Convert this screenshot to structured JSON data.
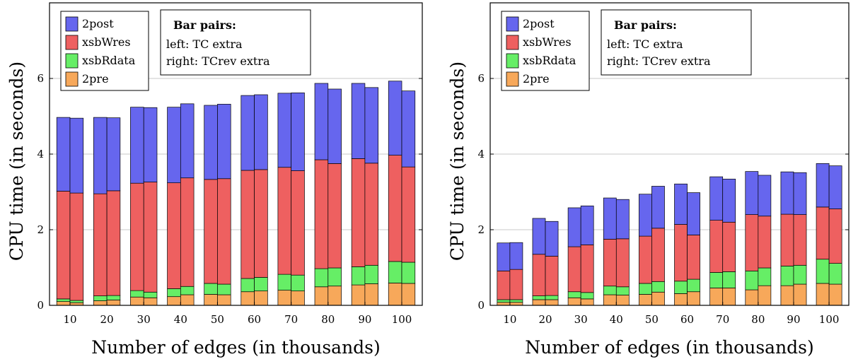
{
  "chart_data": [
    {
      "type": "bar",
      "stacked": true,
      "grouped": "pairs",
      "categories": [
        "10",
        "20",
        "30",
        "40",
        "50",
        "60",
        "70",
        "80",
        "90",
        "100"
      ],
      "xlabel": "Number of edges (in thousands)",
      "ylabel": "CPU time (in seconds)",
      "ylim": [
        0,
        8
      ],
      "yticks": [
        0,
        2,
        4,
        6
      ],
      "grid": "horizontal",
      "legend": {
        "placement": "top-left",
        "entries": [
          {
            "name": "2post",
            "color": "#6666ee"
          },
          {
            "name": "xsbWres",
            "color": "#ee6060"
          },
          {
            "name": "xsbRdata",
            "color": "#66ee66"
          },
          {
            "name": "2pre",
            "color": "#f7a85a"
          }
        ]
      },
      "note": {
        "title": "Bar pairs:",
        "lines": [
          "left: TC extra",
          "right: TCrev extra"
        ]
      },
      "series": [
        {
          "name": "2pre",
          "color": "#f7a85a",
          "left": [
            0.1,
            0.12,
            0.22,
            0.23,
            0.29,
            0.36,
            0.4,
            0.49,
            0.54,
            0.59
          ],
          "right": [
            0.07,
            0.14,
            0.2,
            0.28,
            0.28,
            0.38,
            0.38,
            0.51,
            0.57,
            0.58
          ]
        },
        {
          "name": "xsbRdata",
          "color": "#66ee66",
          "left": [
            0.07,
            0.13,
            0.17,
            0.21,
            0.29,
            0.35,
            0.42,
            0.48,
            0.48,
            0.57
          ],
          "right": [
            0.06,
            0.12,
            0.15,
            0.22,
            0.28,
            0.36,
            0.42,
            0.48,
            0.49,
            0.56
          ]
        },
        {
          "name": "xsbWres",
          "color": "#ee6060",
          "left": [
            2.85,
            2.7,
            2.84,
            2.8,
            2.75,
            2.86,
            2.83,
            2.88,
            2.86,
            2.81
          ],
          "right": [
            2.84,
            2.77,
            2.91,
            2.87,
            2.79,
            2.85,
            2.76,
            2.76,
            2.7,
            2.52
          ]
        },
        {
          "name": "2post",
          "color": "#6666ee",
          "left": [
            1.95,
            2.02,
            2.01,
            2.0,
            1.96,
            1.98,
            1.96,
            2.02,
            1.99,
            1.96
          ],
          "right": [
            1.98,
            1.93,
            1.97,
            1.96,
            1.97,
            1.98,
            2.06,
            1.97,
            2.0,
            2.01
          ]
        }
      ]
    },
    {
      "type": "bar",
      "stacked": true,
      "grouped": "pairs",
      "categories": [
        "10",
        "20",
        "30",
        "40",
        "50",
        "60",
        "70",
        "80",
        "90",
        "100"
      ],
      "xlabel": "Number of edges (in thousands)",
      "ylabel": "CPU time (in seconds)",
      "ylim": [
        0,
        8
      ],
      "yticks": [
        0,
        2,
        4,
        6
      ],
      "grid": "horizontal",
      "legend": {
        "placement": "top-left",
        "entries": [
          {
            "name": "2post",
            "color": "#6666ee"
          },
          {
            "name": "xsbWres",
            "color": "#ee6060"
          },
          {
            "name": "xsbRdata",
            "color": "#66ee66"
          },
          {
            "name": "2pre",
            "color": "#f7a85a"
          }
        ]
      },
      "note": {
        "title": "Bar pairs:",
        "lines": [
          "left: TC extra",
          "right: TCrev extra"
        ]
      },
      "series": [
        {
          "name": "2pre",
          "color": "#f7a85a",
          "left": [
            0.08,
            0.15,
            0.2,
            0.28,
            0.29,
            0.31,
            0.46,
            0.41,
            0.52,
            0.58
          ],
          "right": [
            0.08,
            0.15,
            0.17,
            0.27,
            0.35,
            0.36,
            0.46,
            0.52,
            0.56,
            0.56
          ]
        },
        {
          "name": "xsbRdata",
          "color": "#66ee66",
          "left": [
            0.07,
            0.1,
            0.16,
            0.23,
            0.29,
            0.33,
            0.41,
            0.5,
            0.52,
            0.64
          ],
          "right": [
            0.07,
            0.11,
            0.17,
            0.22,
            0.28,
            0.33,
            0.43,
            0.47,
            0.5,
            0.55
          ]
        },
        {
          "name": "xsbWres",
          "color": "#ee6060",
          "left": [
            0.76,
            1.1,
            1.19,
            1.24,
            1.25,
            1.5,
            1.38,
            1.49,
            1.37,
            1.38
          ],
          "right": [
            0.8,
            1.04,
            1.26,
            1.27,
            1.41,
            1.17,
            1.31,
            1.37,
            1.34,
            1.44
          ]
        },
        {
          "name": "2post",
          "color": "#6666ee",
          "left": [
            0.74,
            0.95,
            1.03,
            1.09,
            1.11,
            1.07,
            1.15,
            1.14,
            1.12,
            1.15
          ],
          "right": [
            0.71,
            0.92,
            1.03,
            1.04,
            1.11,
            1.12,
            1.14,
            1.08,
            1.11,
            1.14
          ]
        }
      ]
    }
  ]
}
